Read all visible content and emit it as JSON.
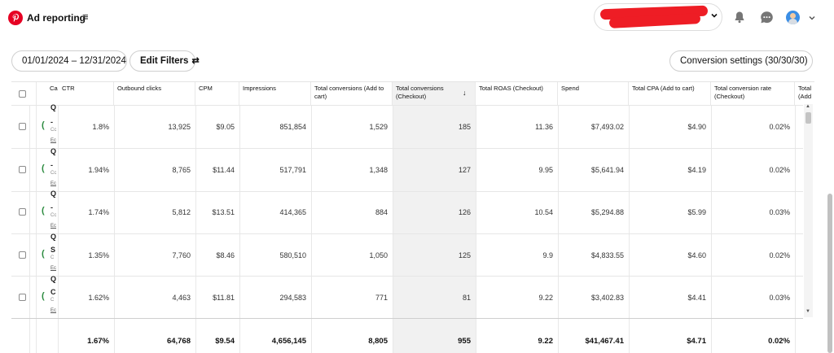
{
  "header": {
    "app_title": "Ad reporting",
    "menu_icon": "≡",
    "chevron": "⌄"
  },
  "toolbar": {
    "date_range": "01/01/2024 – 12/31/2024",
    "filters_label": "Edit Filters",
    "filters_icon": "⇄",
    "conversion_settings": "Conversion settings (30/30/30)"
  },
  "table": {
    "name_header_fragment": "Ca",
    "columns": [
      "CTR",
      "Outbound clicks",
      "CPM",
      "Impressions",
      "Total conversions (Add to cart)",
      "Total conversions (Checkout)",
      "Total ROAS (Checkout)",
      "Spend",
      "Total CPA (Add to cart)",
      "Total conversion rate (Checkout)",
      "Total (Add"
    ],
    "sort_arrow": "↓",
    "rows": [
      {
        "name": "Q",
        "name2": "-",
        "sub": "Cc",
        "link": "Ec",
        "values": [
          "1.8%",
          "13,925",
          "$9.05",
          "851,854",
          "1,529",
          "185",
          "11.36",
          "$7,493.02",
          "$4.90",
          "0.02%"
        ]
      },
      {
        "name": "Q",
        "name2": "-",
        "sub": "Cc",
        "link": "Ec",
        "values": [
          "1.94%",
          "8,765",
          "$11.44",
          "517,791",
          "1,348",
          "127",
          "9.95",
          "$5,641.94",
          "$4.19",
          "0.02%"
        ]
      },
      {
        "name": "Q",
        "name2": "-",
        "sub": "Cc",
        "link": "Ec",
        "values": [
          "1.74%",
          "5,812",
          "$13.51",
          "414,365",
          "884",
          "126",
          "10.54",
          "$5,294.88",
          "$5.99",
          "0.03%"
        ]
      },
      {
        "name": "Q",
        "name2": "S",
        "sub": "C",
        "link": "Ec",
        "values": [
          "1.35%",
          "7,760",
          "$8.46",
          "580,510",
          "1,050",
          "125",
          "9.9",
          "$4,833.55",
          "$4.60",
          "0.02%"
        ]
      },
      {
        "name": "Q",
        "name2": "C",
        "sub": "C",
        "link": "Ec",
        "values": [
          "1.62%",
          "4,463",
          "$11.81",
          "294,583",
          "771",
          "81",
          "9.22",
          "$3,402.83",
          "$4.41",
          "0.03%"
        ]
      }
    ],
    "totals": [
      "1.67%",
      "64,768",
      "$9.54",
      "4,656,145",
      "8,805",
      "955",
      "9.22",
      "$41,467.41",
      "$4.71",
      "0.02%"
    ]
  },
  "colors": {
    "brand": "#e60023",
    "redaction": "#ee1d25",
    "status_green": "#2a8a3e",
    "sorted_column_bg": "#f1f1f1"
  },
  "icons": {
    "logo": "pinterest-logo-icon",
    "bell": "bell-icon",
    "chat": "chat-icon",
    "avatar": "avatar-icon"
  }
}
